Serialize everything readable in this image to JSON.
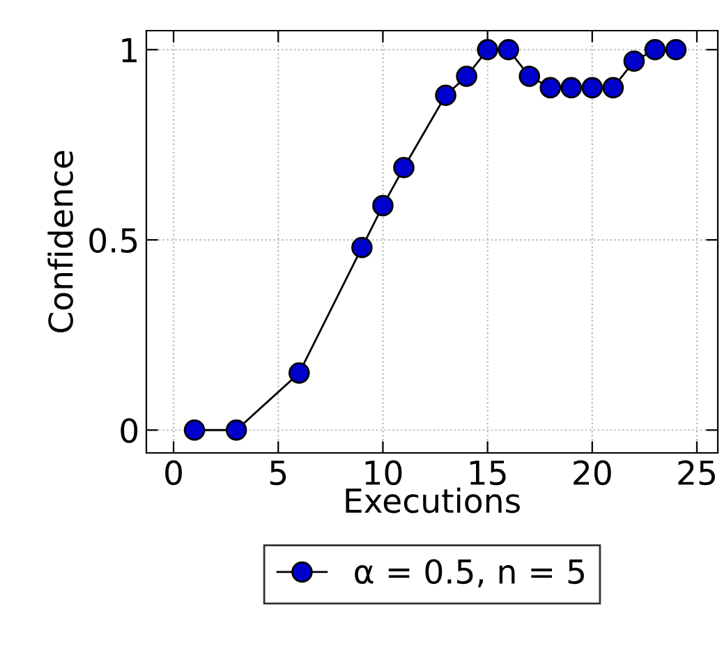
{
  "chart_data": {
    "type": "line",
    "xlabel": "Executions",
    "ylabel": "Confidence",
    "xlim": [
      -1.3,
      26
    ],
    "ylim": [
      -0.06,
      1.05
    ],
    "xticks": [
      0,
      5,
      10,
      15,
      20,
      25
    ],
    "yticks": [
      0,
      0.5,
      1
    ],
    "grid": true,
    "legend": "bottom",
    "marker": "circle",
    "line_style": "solid",
    "series": [
      {
        "name": "α = 0.5, n = 5",
        "color": "#0000cc",
        "x": [
          1,
          3,
          6,
          9,
          10,
          11,
          13,
          14,
          15,
          16,
          17,
          18,
          19,
          20,
          21,
          22,
          23,
          24
        ],
        "values": [
          0,
          0,
          0.15,
          0.48,
          0.59,
          0.69,
          0.88,
          0.93,
          1,
          1,
          0.93,
          0.9,
          0.9,
          0.9,
          0.9,
          0.97,
          1,
          1
        ]
      }
    ]
  }
}
